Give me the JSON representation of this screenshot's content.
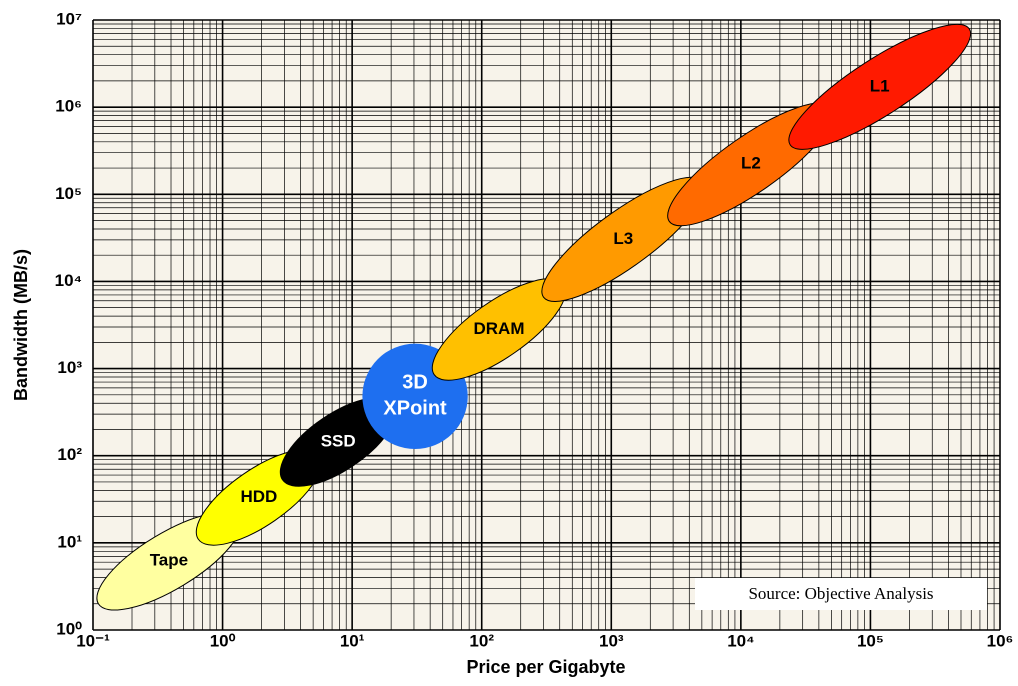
{
  "chart_data": {
    "type": "ellipse",
    "x_label": "Price per Gigabyte",
    "y_label": "Bandwidth (MB/s)",
    "source": "Source: Objective Analysis",
    "xscale": "log",
    "yscale": "log",
    "grid": true,
    "minor_grid": true,
    "xlim": [
      0.1,
      1000000
    ],
    "ylim": [
      1,
      10000000
    ],
    "xticks": [
      {
        "value": 0.1,
        "label": "10⁻¹"
      },
      {
        "value": 1,
        "label": "10⁰"
      },
      {
        "value": 10,
        "label": "10¹"
      },
      {
        "value": 100,
        "label": "10²"
      },
      {
        "value": 1000,
        "label": "10³"
      },
      {
        "value": 10000,
        "label": "10⁴"
      },
      {
        "value": 100000,
        "label": "10⁵"
      },
      {
        "value": 1000000,
        "label": "10⁶"
      }
    ],
    "yticks": [
      {
        "value": 1,
        "label": "10⁰"
      },
      {
        "value": 10,
        "label": "10¹"
      },
      {
        "value": 100,
        "label": "10²"
      },
      {
        "value": 1000,
        "label": "10³"
      },
      {
        "value": 10000,
        "label": "10⁴"
      },
      {
        "value": 100000,
        "label": "10⁵"
      },
      {
        "value": 1000000,
        "label": "10⁶"
      },
      {
        "value": 10000000,
        "label": "10⁷"
      }
    ],
    "series": [
      {
        "name": "Tape",
        "color": "#ffffa0",
        "text_color": "#000000",
        "x": [
          0.11,
          1.35
        ],
        "y": [
          2,
          19
        ]
      },
      {
        "name": "HDD",
        "color": "#ffff00",
        "text_color": "#000000",
        "x": [
          0.65,
          5.6
        ],
        "y": [
          11,
          100
        ]
      },
      {
        "name": "SSD",
        "color": "#000000",
        "text_color": "#ffffff",
        "x": [
          2.9,
          21
        ],
        "y": [
          53,
          390
        ]
      },
      {
        "name": "3D XPoint",
        "color": "#1e6ff0",
        "text_color": "#ffffff",
        "shape": "circle",
        "x": [
          12,
          78
        ],
        "y": [
          480,
          480
        ]
      },
      {
        "name": "DRAM",
        "color": "#ffc000",
        "text_color": "#000000",
        "x": [
          43,
          430
        ],
        "y": [
          850,
          9300
        ]
      },
      {
        "name": "L3",
        "color": "#ff9a00",
        "text_color": "#000000",
        "x": [
          300,
          5100
        ],
        "y": [
          6600,
          140000
        ]
      },
      {
        "name": "L2",
        "color": "#ff6a00",
        "text_color": "#000000",
        "x": [
          2800,
          51000
        ],
        "y": [
          49000,
          1000000
        ]
      },
      {
        "name": "L1",
        "color": "#ff1a00",
        "text_color": "#000000",
        "x": [
          24000,
          580000
        ],
        "y": [
          370000,
          7900000
        ]
      }
    ]
  }
}
